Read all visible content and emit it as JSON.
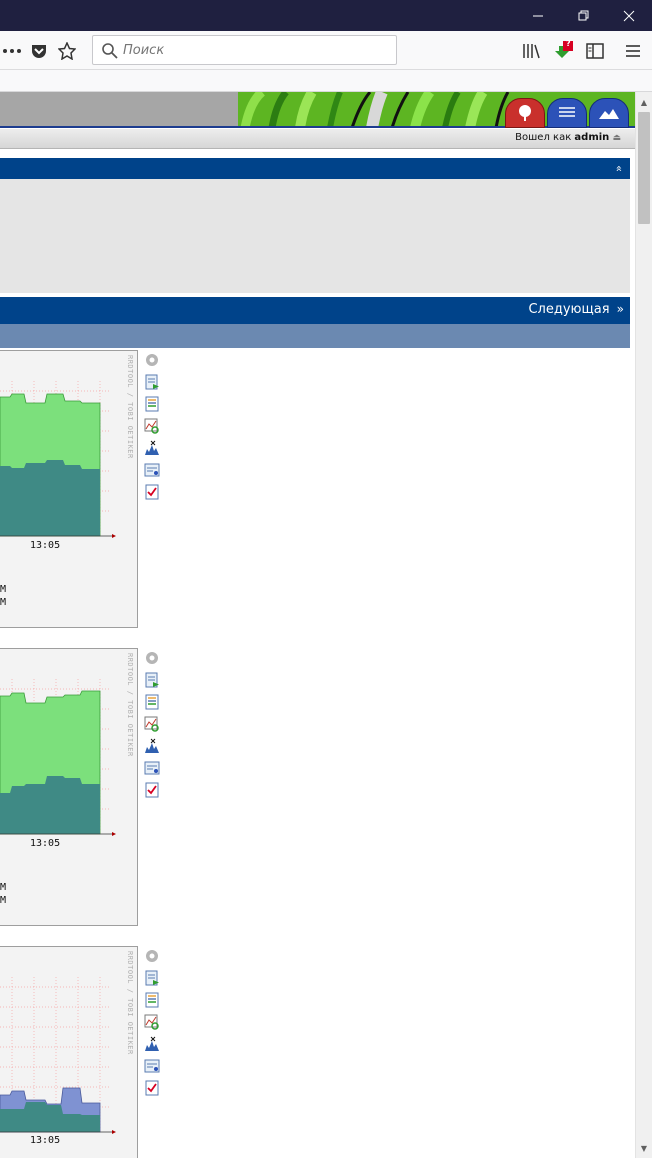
{
  "browser": {
    "search_placeholder": "Поиск",
    "window_controls": [
      "minimize-icon",
      "restore-icon",
      "close-icon"
    ],
    "toolbar_icons": [
      "more-icon",
      "pocket-icon",
      "star-icon",
      "library-icon",
      "download-icon",
      "sidebar-icon",
      "menu-icon"
    ],
    "download_badge": "?"
  },
  "header": {
    "user_prefix": "Вошел как",
    "user_name": "admin",
    "logout_glyph": "⏏",
    "tabs": [
      "tree-icon",
      "list-icon",
      "mountain-icon"
    ]
  },
  "panel1": {
    "collapse_glyph": "»"
  },
  "pager": {
    "next_label": "Следующая",
    "next_glyph": "»"
  },
  "graphs": [
    {
      "time_label": "13:05",
      "side_label": "RRDTOOL / TOBI OETIKER",
      "legend": [
        "M",
        "M"
      ]
    },
    {
      "time_label": "13:05",
      "side_label": "RRDTOOL / TOBI OETIKER",
      "legend": [
        "M",
        "M"
      ]
    },
    {
      "time_label": "13:05",
      "side_label": "RRDTOOL / TOBI OETIKER",
      "legend": []
    }
  ],
  "tool_icons": [
    "gear-icon",
    "export-icon",
    "list-icon",
    "zoom-icon",
    "spikekill-icon",
    "properties-icon",
    "check-icon"
  ],
  "colors": {
    "accent": "#00438a",
    "subbar": "#6b89b1",
    "graph_green": "#7ce07c",
    "graph_teal": "#3f8a85",
    "graph_blue": "#7f92d2"
  }
}
